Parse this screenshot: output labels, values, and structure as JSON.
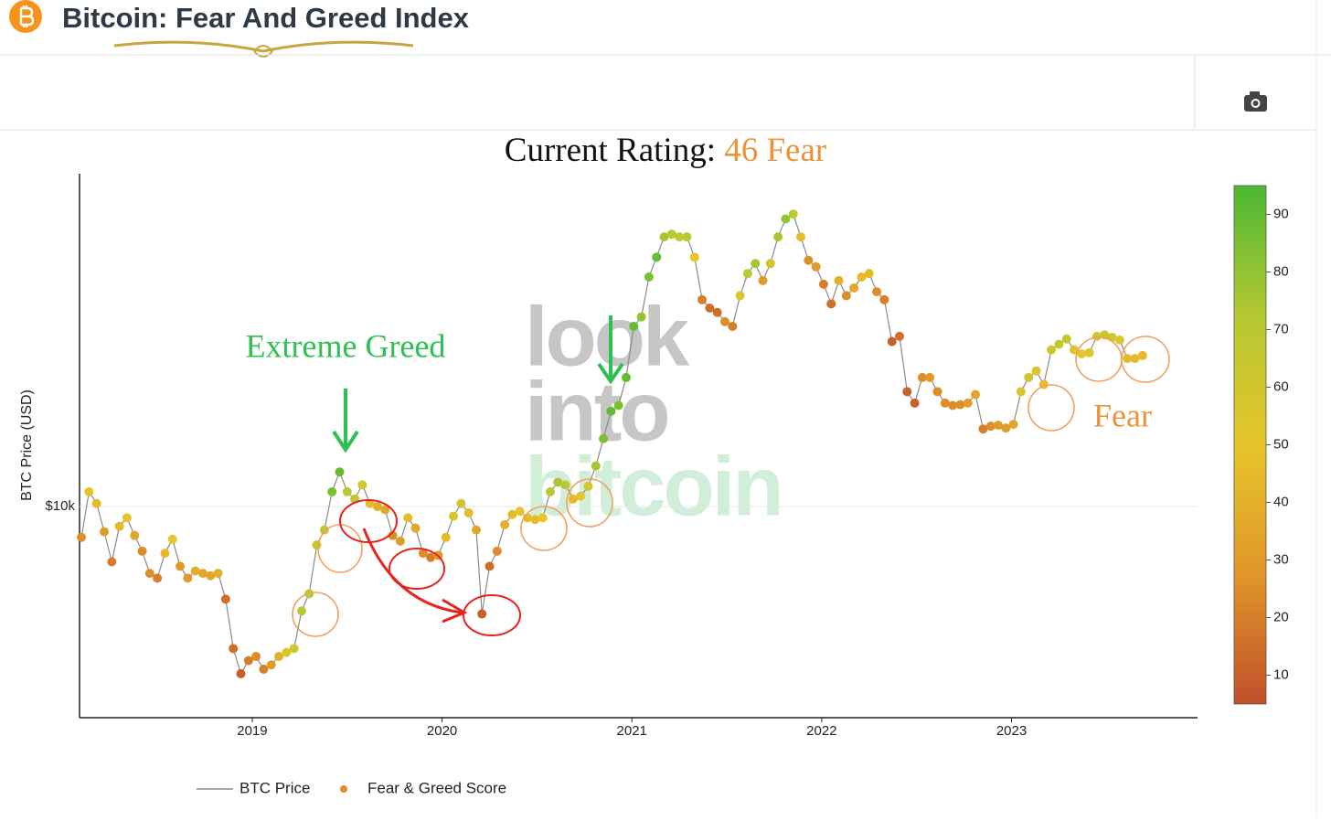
{
  "header": {
    "title": "Bitcoin: Fear And Greed Index"
  },
  "chart_data": {
    "type": "scatter",
    "title": "Current Rating:",
    "rating": "46 Fear",
    "rating_color": "#e8943a",
    "y_label": "BTC Price (USD)",
    "yscale": "log",
    "xlim": [
      2018.09,
      2023.98
    ],
    "xticks": [
      2019,
      2020,
      2021,
      2022,
      2023
    ],
    "ylim": [
      2560,
      85700
    ],
    "yticks": [
      {
        "value": 10000,
        "label": "$10k"
      }
    ],
    "grid": true,
    "legend": "bottom",
    "x": [
      2018.1,
      2018.14,
      2018.18,
      2018.22,
      2018.26,
      2018.3,
      2018.34,
      2018.38,
      2018.42,
      2018.46,
      2018.5,
      2018.54,
      2018.58,
      2018.62,
      2018.66,
      2018.7,
      2018.74,
      2018.78,
      2018.82,
      2018.86,
      2018.9,
      2018.94,
      2018.98,
      2019.02,
      2019.06,
      2019.1,
      2019.14,
      2019.18,
      2019.22,
      2019.26,
      2019.3,
      2019.34,
      2019.38,
      2019.42,
      2019.46,
      2019.5,
      2019.54,
      2019.58,
      2019.62,
      2019.66,
      2019.7,
      2019.74,
      2019.78,
      2019.82,
      2019.86,
      2019.9,
      2019.94,
      2019.98,
      2020.02,
      2020.06,
      2020.1,
      2020.14,
      2020.18,
      2020.21,
      2020.25,
      2020.29,
      2020.33,
      2020.37,
      2020.41,
      2020.45,
      2020.49,
      2020.53,
      2020.57,
      2020.61,
      2020.65,
      2020.69,
      2020.73,
      2020.77,
      2020.81,
      2020.85,
      2020.89,
      2020.93,
      2020.97,
      2021.01,
      2021.05,
      2021.09,
      2021.13,
      2021.17,
      2021.21,
      2021.25,
      2021.29,
      2021.33,
      2021.37,
      2021.41,
      2021.45,
      2021.49,
      2021.53,
      2021.57,
      2021.61,
      2021.65,
      2021.69,
      2021.73,
      2021.77,
      2021.81,
      2021.85,
      2021.89,
      2021.93,
      2021.97,
      2022.01,
      2022.05,
      2022.09,
      2022.13,
      2022.17,
      2022.21,
      2022.25,
      2022.29,
      2022.33,
      2022.37,
      2022.41,
      2022.45,
      2022.49,
      2022.53,
      2022.57,
      2022.61,
      2022.65,
      2022.69,
      2022.73,
      2022.77,
      2022.81,
      2022.85,
      2022.89,
      2022.93,
      2022.97,
      2023.01,
      2023.05,
      2023.09,
      2023.13,
      2023.17,
      2023.21,
      2023.25,
      2023.29,
      2023.33,
      2023.37,
      2023.41,
      2023.45,
      2023.49,
      2023.53,
      2023.57,
      2023.61,
      2023.65,
      2023.69
    ],
    "series": [
      {
        "name": "BTC Price",
        "color": "#8a8a8a",
        "values": [
          8200,
          11000,
          10200,
          8500,
          7000,
          8800,
          9300,
          8300,
          7500,
          6500,
          6300,
          7400,
          8100,
          6800,
          6300,
          6600,
          6500,
          6400,
          6500,
          5500,
          4000,
          3400,
          3700,
          3800,
          3500,
          3600,
          3800,
          3900,
          4000,
          5100,
          5700,
          7800,
          8600,
          11000,
          12500,
          11000,
          10500,
          11500,
          10200,
          10000,
          9800,
          8300,
          8000,
          9300,
          8700,
          7400,
          7200,
          7300,
          8200,
          9400,
          10200,
          9600,
          8600,
          5000,
          6800,
          7500,
          8900,
          9500,
          9700,
          9300,
          9200,
          9300,
          11000,
          11700,
          11500,
          10500,
          10700,
          11400,
          13000,
          15500,
          18500,
          19200,
          23000,
          32000,
          34000,
          44000,
          50000,
          57000,
          58000,
          57000,
          57000,
          50000,
          38000,
          36000,
          35000,
          33000,
          32000,
          39000,
          45000,
          48000,
          43000,
          48000,
          57000,
          64000,
          66000,
          57000,
          49000,
          47000,
          42000,
          37000,
          43000,
          39000,
          41000,
          44000,
          45000,
          40000,
          38000,
          29000,
          30000,
          21000,
          19500,
          23000,
          23000,
          21000,
          19500,
          19200,
          19300,
          19500,
          20600,
          16500,
          16800,
          16900,
          16600,
          17000,
          21000,
          23000,
          24000,
          22000,
          27500,
          28500,
          29500,
          27500,
          26800,
          27000,
          30000,
          30300,
          29800,
          29300,
          26000,
          26000,
          26500
        ]
      },
      {
        "name": "Fear & Greed Score",
        "color": "#e08a2a",
        "values": [
          25,
          50,
          45,
          30,
          20,
          45,
          50,
          35,
          25,
          25,
          20,
          45,
          50,
          30,
          30,
          40,
          35,
          35,
          40,
          15,
          15,
          10,
          20,
          25,
          20,
          30,
          40,
          55,
          60,
          70,
          70,
          65,
          70,
          85,
          90,
          70,
          65,
          60,
          45,
          40,
          35,
          25,
          30,
          45,
          35,
          25,
          20,
          30,
          45,
          55,
          60,
          45,
          35,
          10,
          15,
          25,
          40,
          45,
          50,
          45,
          45,
          50,
          70,
          75,
          70,
          45,
          50,
          60,
          75,
          85,
          90,
          85,
          90,
          90,
          80,
          85,
          90,
          75,
          70,
          65,
          70,
          50,
          20,
          15,
          15,
          25,
          20,
          55,
          70,
          75,
          30,
          60,
          75,
          80,
          70,
          45,
          25,
          30,
          20,
          15,
          40,
          25,
          35,
          45,
          45,
          25,
          20,
          10,
          15,
          10,
          10,
          25,
          30,
          25,
          25,
          25,
          25,
          30,
          35,
          20,
          25,
          30,
          30,
          35,
          55,
          60,
          55,
          45,
          60,
          65,
          65,
          55,
          50,
          55,
          60,
          65,
          60,
          55,
          45,
          45,
          45
        ]
      }
    ],
    "colorbar": {
      "range": [
        5,
        95
      ],
      "ticks": [
        10,
        20,
        30,
        40,
        50,
        60,
        70,
        80,
        90
      ],
      "colors": [
        "#c0502a",
        "#e0962a",
        "#e6c52a",
        "#b5c832",
        "#4cb832"
      ]
    },
    "watermark": [
      "look",
      "into",
      "bitcoin"
    ],
    "watermark_colors": [
      "#bdbdbd",
      "#bdbdbd",
      "#c9ecd2"
    ],
    "annotations": [
      {
        "text": "Extreme Greed",
        "color": "#2ec050"
      },
      {
        "text": "Fear",
        "color": "#e8943a"
      }
    ]
  }
}
